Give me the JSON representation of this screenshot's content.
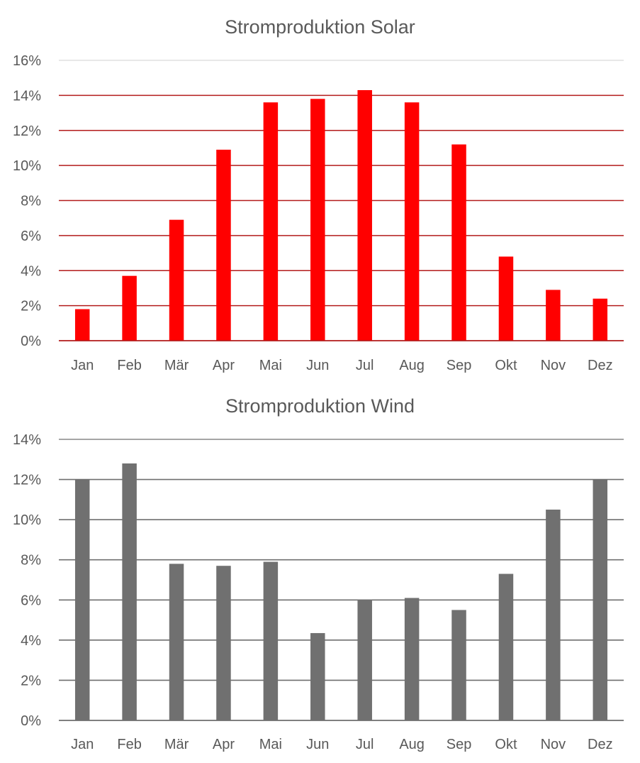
{
  "chart_data": [
    {
      "type": "bar",
      "title": "Stromproduktion Solar",
      "categories": [
        "Jan",
        "Feb",
        "Mär",
        "Apr",
        "Mai",
        "Jun",
        "Jul",
        "Aug",
        "Sep",
        "Okt",
        "Nov",
        "Dez"
      ],
      "values": [
        1.8,
        3.7,
        6.9,
        10.9,
        13.6,
        13.8,
        14.3,
        13.6,
        11.2,
        4.8,
        2.9,
        2.4
      ],
      "ylim": [
        0,
        16
      ],
      "yticks": [
        0,
        2,
        4,
        6,
        8,
        10,
        12,
        14,
        16
      ],
      "ytick_labels": [
        "0%",
        "2%",
        "4%",
        "6%",
        "8%",
        "10%",
        "12%",
        "14%",
        "16%"
      ],
      "xlabel": "",
      "ylabel": "",
      "grid": true,
      "bar_color": "#ff0000",
      "grid_color": "#b31b1b",
      "top_grid_color": "#d9d9d9"
    },
    {
      "type": "bar",
      "title": "Stromproduktion Wind",
      "categories": [
        "Jan",
        "Feb",
        "Mär",
        "Apr",
        "Mai",
        "Jun",
        "Jul",
        "Aug",
        "Sep",
        "Okt",
        "Nov",
        "Dez"
      ],
      "values": [
        12.0,
        12.8,
        7.8,
        7.7,
        7.9,
        4.35,
        6.0,
        6.1,
        5.5,
        7.3,
        10.5,
        12.0
      ],
      "ylim": [
        0,
        14
      ],
      "yticks": [
        0,
        2,
        4,
        6,
        8,
        10,
        12,
        14
      ],
      "ytick_labels": [
        "0%",
        "2%",
        "4%",
        "6%",
        "8%",
        "10%",
        "12%",
        "14%"
      ],
      "xlabel": "",
      "ylabel": "",
      "grid": true,
      "bar_color": "#707070",
      "grid_color": "#6f6f6f",
      "top_grid_color": "#6f6f6f"
    }
  ]
}
